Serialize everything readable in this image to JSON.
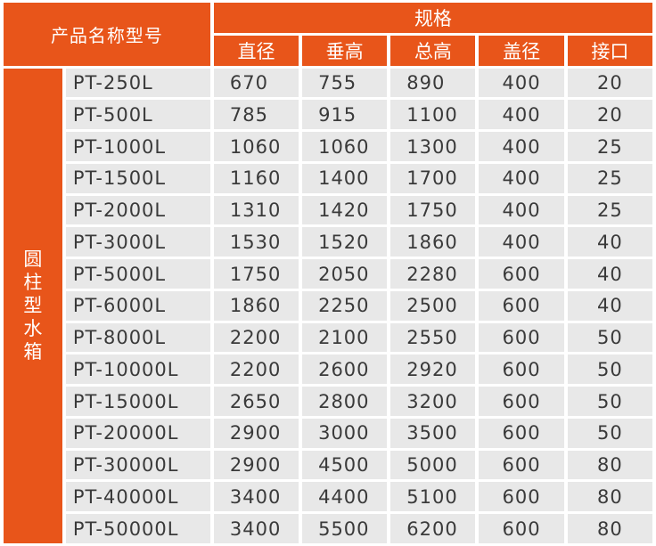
{
  "header": {
    "product_name_label": "产品名称型号",
    "spec_group_label": "规格",
    "columns": [
      "直径",
      "垂高",
      "总高",
      "盖径",
      "接口"
    ]
  },
  "category": [
    "圆",
    "柱",
    "型",
    "水",
    "箱"
  ],
  "rows": [
    {
      "model": "PT-250L",
      "diameter": "670",
      "height": "755",
      "total_height": "890",
      "lid_diameter": "400",
      "port": "20"
    },
    {
      "model": "PT-500L",
      "diameter": "785",
      "height": "915",
      "total_height": "1100",
      "lid_diameter": "400",
      "port": "20"
    },
    {
      "model": "PT-1000L",
      "diameter": "1060",
      "height": "1060",
      "total_height": "1300",
      "lid_diameter": "400",
      "port": "25"
    },
    {
      "model": "PT-1500L",
      "diameter": "1160",
      "height": "1400",
      "total_height": "1700",
      "lid_diameter": "400",
      "port": "25"
    },
    {
      "model": "PT-2000L",
      "diameter": "1310",
      "height": "1420",
      "total_height": "1750",
      "lid_diameter": "400",
      "port": "25"
    },
    {
      "model": "PT-3000L",
      "diameter": "1530",
      "height": "1520",
      "total_height": "1860",
      "lid_diameter": "400",
      "port": "40"
    },
    {
      "model": "PT-5000L",
      "diameter": "1750",
      "height": "2050",
      "total_height": "2280",
      "lid_diameter": "600",
      "port": "40"
    },
    {
      "model": "PT-6000L",
      "diameter": "1860",
      "height": "2250",
      "total_height": "2500",
      "lid_diameter": "600",
      "port": "40"
    },
    {
      "model": "PT-8000L",
      "diameter": "2200",
      "height": "2100",
      "total_height": "2550",
      "lid_diameter": "600",
      "port": "50"
    },
    {
      "model": "PT-10000L",
      "diameter": "2200",
      "height": "2600",
      "total_height": "2920",
      "lid_diameter": "600",
      "port": "50"
    },
    {
      "model": "PT-15000L",
      "diameter": "2650",
      "height": "2800",
      "total_height": "3200",
      "lid_diameter": "600",
      "port": "50"
    },
    {
      "model": "PT-20000L",
      "diameter": "2900",
      "height": "3000",
      "total_height": "3500",
      "lid_diameter": "600",
      "port": "50"
    },
    {
      "model": "PT-30000L",
      "diameter": "2900",
      "height": "4500",
      "total_height": "5000",
      "lid_diameter": "600",
      "port": "80"
    },
    {
      "model": "PT-40000L",
      "diameter": "3400",
      "height": "4400",
      "total_height": "5100",
      "lid_diameter": "600",
      "port": "80"
    },
    {
      "model": "PT-50000L",
      "diameter": "3400",
      "height": "5500",
      "total_height": "6200",
      "lid_diameter": "600",
      "port": "80"
    }
  ],
  "colors": {
    "header_bg": "#E8551A",
    "cell_bg": "#E8E8E8",
    "text": "#3a3a3a"
  }
}
